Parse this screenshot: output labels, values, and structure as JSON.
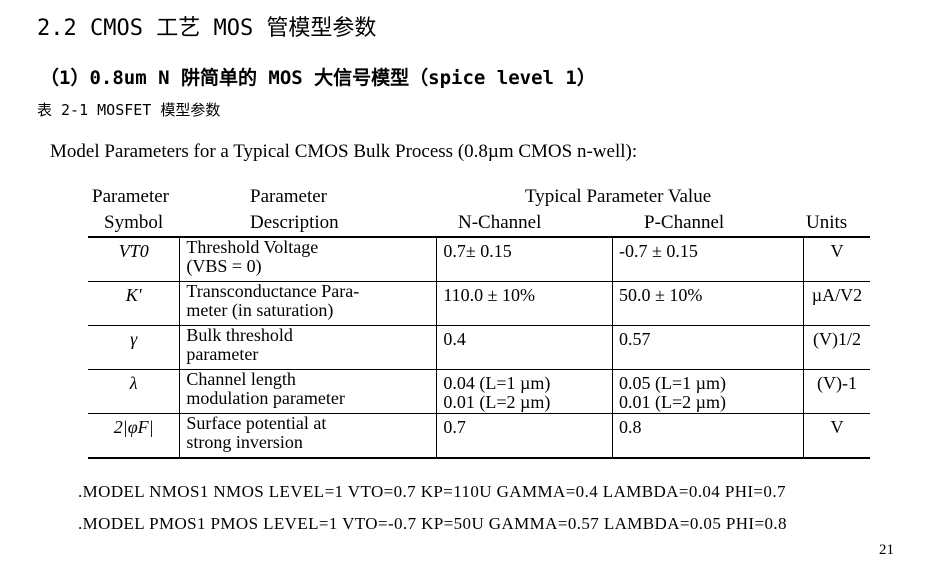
{
  "heading": "2.2 CMOS 工艺 MOS 管模型参数",
  "subheading": "（1）0.8um N 阱简单的 MOS 大信号模型（spice level 1）",
  "table_caption": "表 2-1 MOSFET 模型参数",
  "figure_title": "Model Parameters for a Typical CMOS Bulk Process (0.8µm CMOS n-well):",
  "table_header": {
    "param_symbol_l1": "Parameter",
    "param_symbol_l2": "Symbol",
    "param_desc_l1": "Parameter",
    "param_desc_l2": "Description",
    "typical_value": "Typical Parameter Value",
    "n_channel": "N-Channel",
    "p_channel": "P-Channel",
    "units": "Units"
  },
  "rows": [
    {
      "symbol": "VT0",
      "desc_l1": "Threshold Voltage",
      "desc_l2": "(VBS = 0)",
      "n_l1": "0.7± 0.15",
      "n_l2": "",
      "p_l1": "-0.7 ± 0.15",
      "p_l2": "",
      "units": "V"
    },
    {
      "symbol": "K'",
      "desc_l1": "Transconductance Para-",
      "desc_l2": "meter (in saturation)",
      "n_l1": "110.0 ± 10%",
      "n_l2": "",
      "p_l1": "50.0 ± 10%",
      "p_l2": "",
      "units": "µA/V2"
    },
    {
      "symbol": "γ",
      "desc_l1": "Bulk threshold",
      "desc_l2": "parameter",
      "n_l1": "0.4",
      "n_l2": "",
      "p_l1": "0.57",
      "p_l2": "",
      "units": "(V)1/2"
    },
    {
      "symbol": "λ",
      "desc_l1": "Channel length",
      "desc_l2": "modulation parameter",
      "n_l1": "0.04 (L=1 µm)",
      "n_l2": "0.01 (L=2 µm)",
      "p_l1": "0.05 (L=1 µm)",
      "p_l2": "0.01 (L=2 µm)",
      "units": "(V)-1"
    },
    {
      "symbol": "2|φF|",
      "desc_l1": "Surface potential at",
      "desc_l2": "strong inversion",
      "n_l1": "0.7",
      "n_l2": "",
      "p_l1": "0.8",
      "p_l2": "",
      "units": "V"
    }
  ],
  "code_lines": [
    ".MODEL NMOS1 NMOS LEVEL=1 VTO=0.7 KP=110U GAMMA=0.4 LAMBDA=0.04 PHI=0.7",
    ".MODEL PMOS1 PMOS LEVEL=1 VTO=-0.7 KP=50U GAMMA=0.57 LAMBDA=0.05 PHI=0.8"
  ],
  "page_number": "21"
}
